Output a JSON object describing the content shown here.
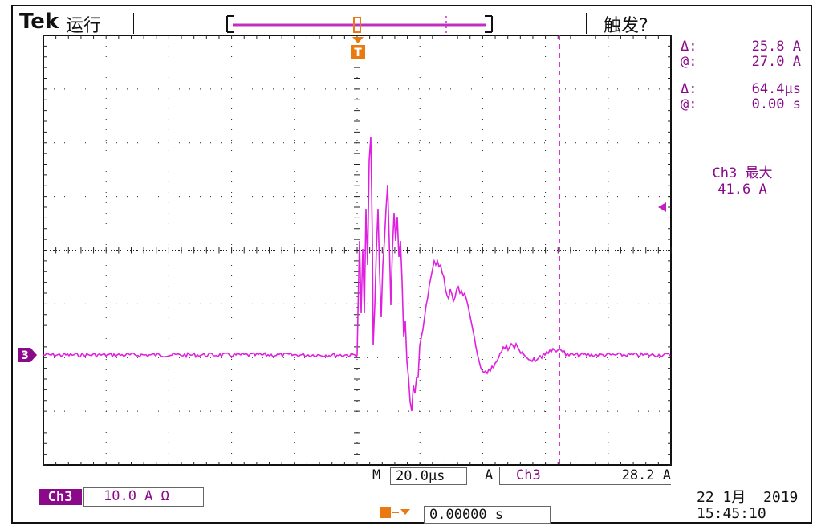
{
  "header": {
    "brand": "Tek",
    "status": "运行",
    "trigger_status": "触发?"
  },
  "cursors": {
    "amplitude_delta_label": "Δ:",
    "amplitude_delta_value": "25.8 A",
    "amplitude_at_label": "@:",
    "amplitude_at_value": "27.0 A",
    "time_delta_label": "Δ:",
    "time_delta_value": "64.4μs",
    "time_at_label": "@:",
    "time_at_value": "0.00 s"
  },
  "measurement": {
    "title": "Ch3 最大",
    "value": "41.6 A"
  },
  "channel_marker": "3",
  "trigger_marker": "T",
  "horizontal": {
    "m_label": "M",
    "timebase": "20.0μs",
    "a_label": "A",
    "trigger_source": "Ch3",
    "slope_icon": "rising-edge-icon",
    "trigger_level": "28.2 A"
  },
  "channel": {
    "badge": "Ch3",
    "scale": "10.0 A Ω"
  },
  "position": {
    "value": "0.00000 s"
  },
  "datetime": {
    "date": "22 1月  2019",
    "time": "15:45:10"
  },
  "colors": {
    "trace": "#e020e0",
    "accent": "#8a0a8a",
    "trigger": "#e87a10",
    "grid": "#000000"
  }
}
